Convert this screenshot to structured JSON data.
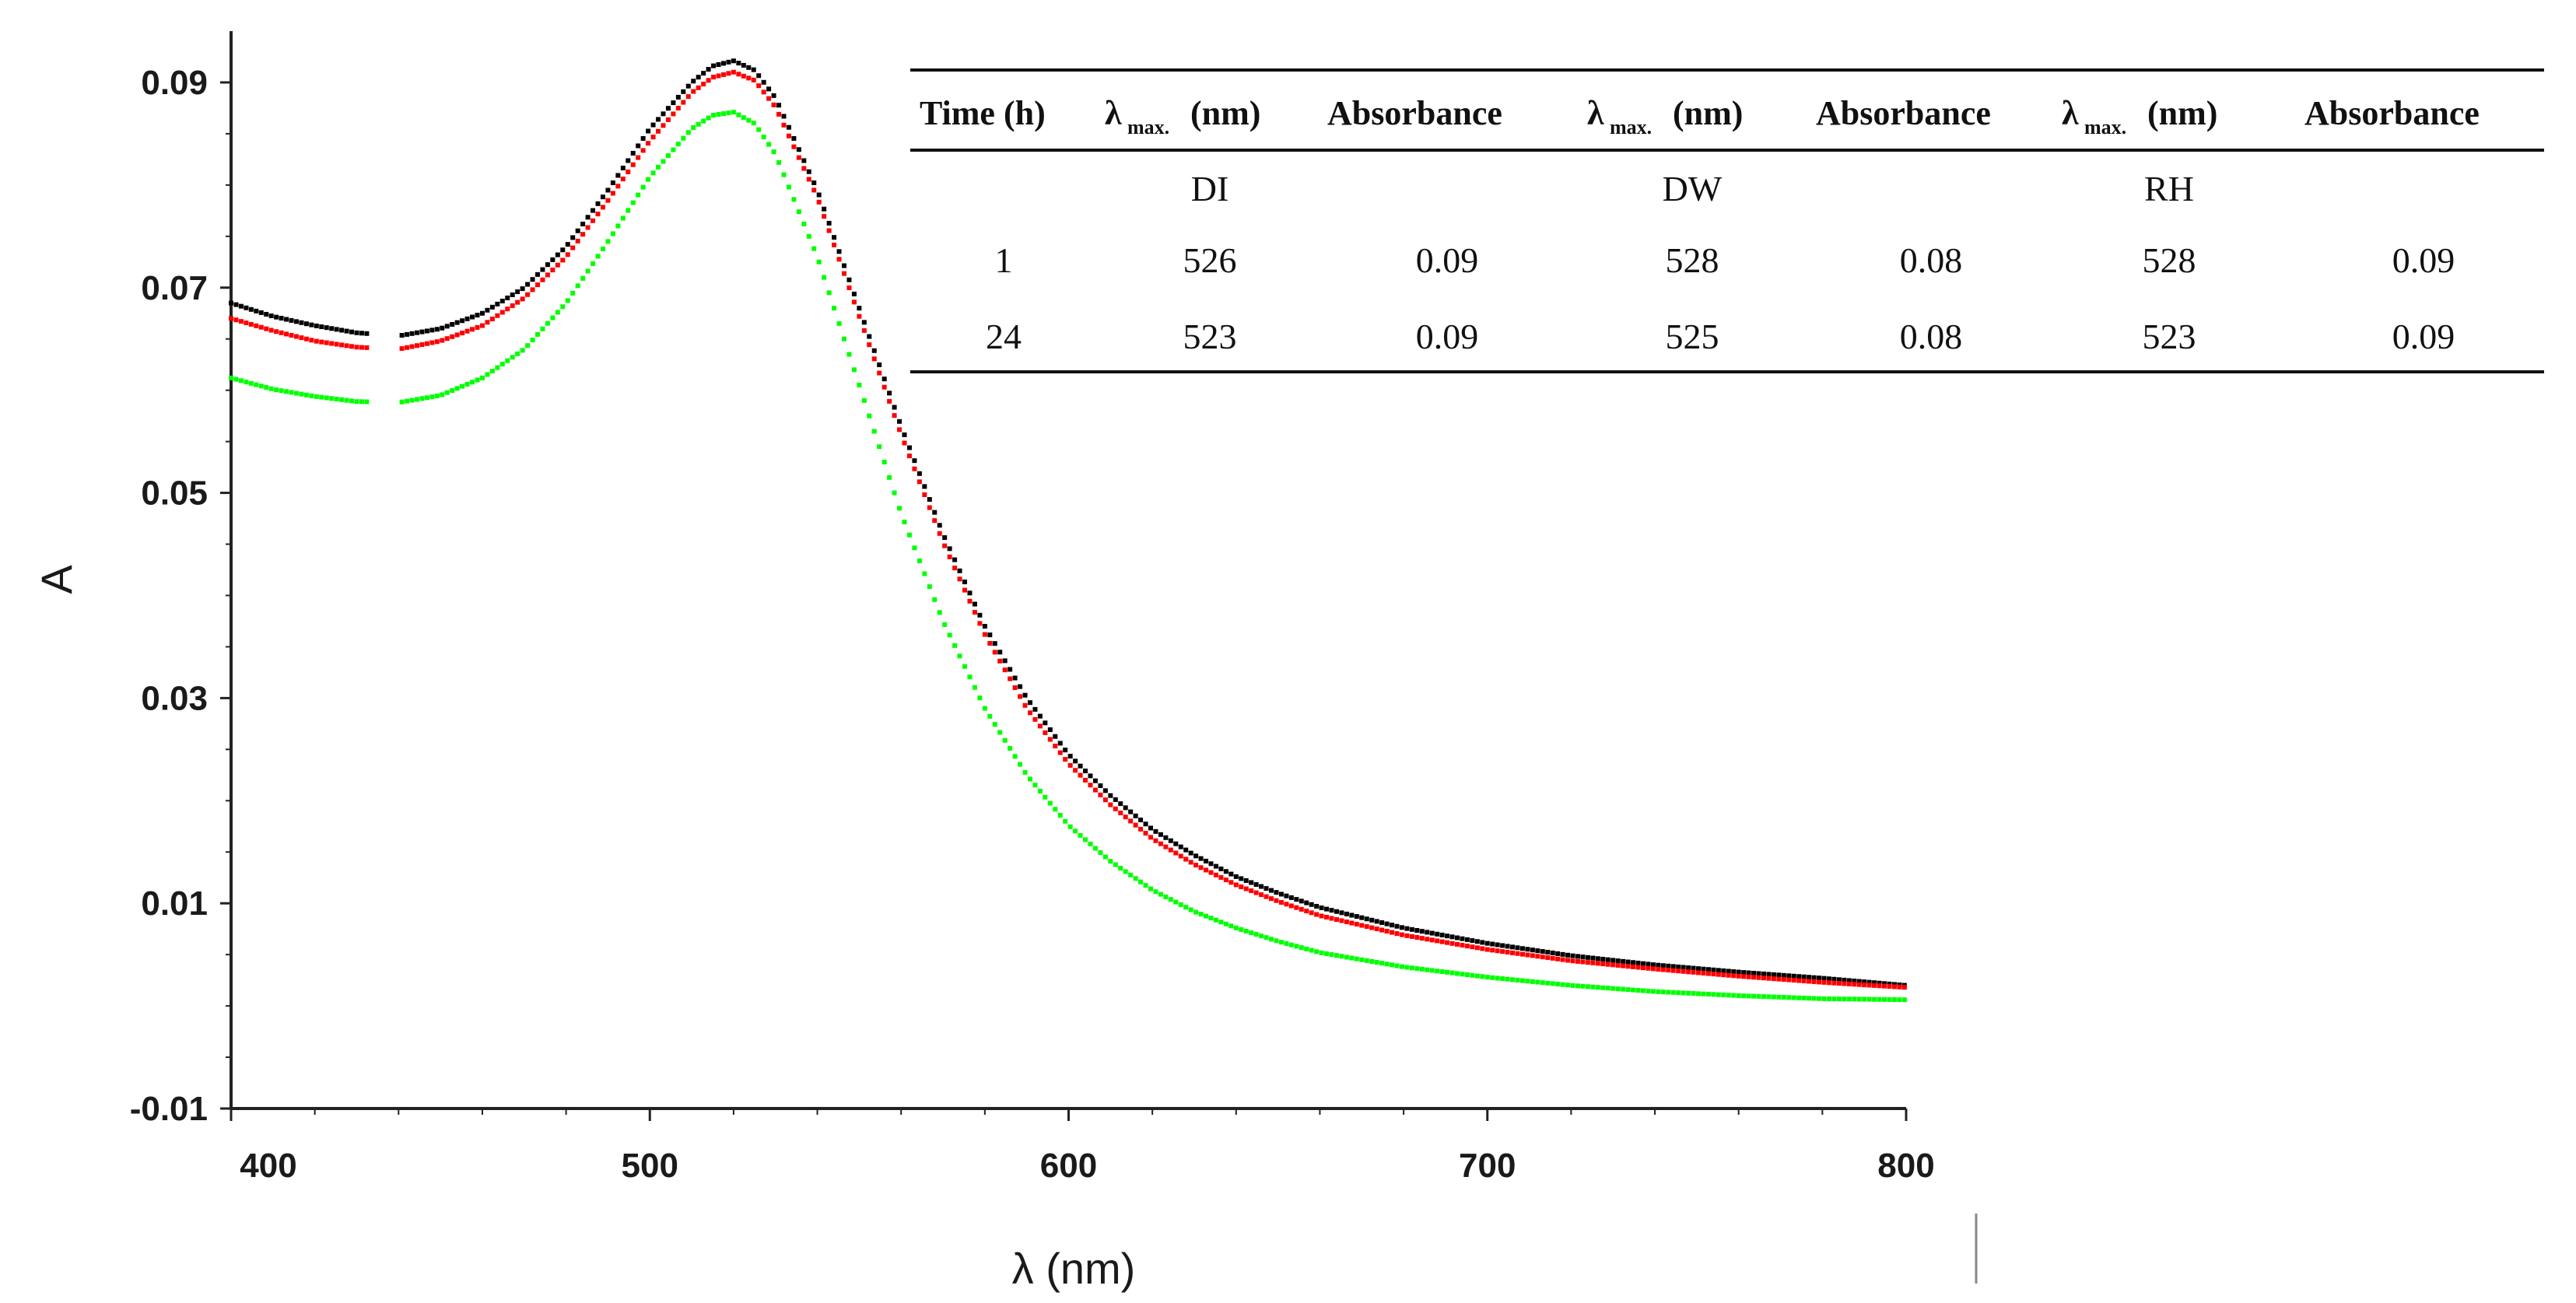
{
  "chart_data": {
    "type": "scatter",
    "title": "",
    "xlabel": "λ (nm)",
    "ylabel": "A",
    "xlim": [
      400,
      800
    ],
    "ylim": [
      -0.01,
      0.095
    ],
    "x_ticks": [
      400,
      500,
      600,
      700,
      800
    ],
    "x_tick_labels": [
      "400",
      "500",
      "600",
      "700",
      "800"
    ],
    "y_ticks": [
      -0.01,
      0.01,
      0.03,
      0.05,
      0.07,
      0.09
    ],
    "y_tick_labels": [
      "-0.01",
      "0.01",
      "0.03",
      "0.05",
      "0.07",
      "0.09"
    ],
    "series": [
      {
        "name": "black",
        "color": "#000000",
        "x": [
          400,
          410,
          420,
          430,
          440,
          450,
          460,
          470,
          480,
          490,
          500,
          510,
          515,
          520,
          525,
          530,
          540,
          550,
          560,
          570,
          580,
          590,
          600,
          610,
          620,
          630,
          640,
          650,
          660,
          680,
          700,
          720,
          740,
          760,
          780,
          800
        ],
        "values": [
          0.0685,
          0.0672,
          0.0663,
          0.0656,
          0.0653,
          0.066,
          0.0675,
          0.07,
          0.074,
          0.0795,
          0.0855,
          0.09,
          0.0916,
          0.0921,
          0.0912,
          0.0885,
          0.0795,
          0.068,
          0.0565,
          0.046,
          0.037,
          0.03,
          0.0245,
          0.0205,
          0.0172,
          0.0147,
          0.0126,
          0.011,
          0.0096,
          0.0076,
          0.0061,
          0.0049,
          0.004,
          0.0033,
          0.0027,
          0.002
        ]
      },
      {
        "name": "red",
        "color": "#ff0000",
        "x": [
          400,
          410,
          420,
          430,
          440,
          450,
          460,
          470,
          480,
          490,
          500,
          510,
          515,
          520,
          525,
          530,
          540,
          550,
          560,
          570,
          580,
          590,
          600,
          610,
          620,
          630,
          640,
          650,
          660,
          680,
          700,
          720,
          740,
          760,
          780,
          800
        ],
        "values": [
          0.067,
          0.0658,
          0.0648,
          0.0642,
          0.064,
          0.0648,
          0.0663,
          0.069,
          0.073,
          0.0785,
          0.0843,
          0.089,
          0.0905,
          0.091,
          0.0902,
          0.0876,
          0.0788,
          0.0672,
          0.0557,
          0.0452,
          0.0362,
          0.029,
          0.0236,
          0.0196,
          0.0163,
          0.0138,
          0.0118,
          0.0102,
          0.0088,
          0.0069,
          0.0055,
          0.0044,
          0.0036,
          0.0029,
          0.0023,
          0.0018
        ]
      },
      {
        "name": "green",
        "color": "#00ff00",
        "x": [
          400,
          410,
          420,
          430,
          440,
          450,
          460,
          470,
          480,
          490,
          500,
          510,
          515,
          520,
          525,
          530,
          540,
          550,
          560,
          570,
          580,
          590,
          600,
          610,
          620,
          630,
          640,
          650,
          660,
          680,
          700,
          720,
          740,
          760,
          780,
          800
        ],
        "values": [
          0.0612,
          0.0601,
          0.0594,
          0.0589,
          0.0588,
          0.0595,
          0.0612,
          0.064,
          0.0685,
          0.0745,
          0.0808,
          0.0855,
          0.0868,
          0.0871,
          0.086,
          0.083,
          0.073,
          0.0605,
          0.048,
          0.0375,
          0.029,
          0.0225,
          0.0176,
          0.0141,
          0.0113,
          0.0092,
          0.0076,
          0.0063,
          0.0052,
          0.0038,
          0.0028,
          0.002,
          0.0014,
          0.001,
          0.0007,
          0.0006
        ]
      }
    ],
    "inset_table": {
      "header": [
        "Time (h)",
        "λ",
        "(nm)",
        "Absorbance",
        "λ",
        "(nm)",
        "Absorbance",
        "λ",
        "(nm)",
        "Absorbance"
      ],
      "subscript": "max.",
      "groups": [
        "DI",
        "DW",
        "RH"
      ],
      "rows": [
        [
          "1",
          "526",
          "0.09",
          "528",
          "0.08",
          "528",
          "0.09"
        ],
        [
          "24",
          "523",
          "0.09",
          "525",
          "0.08",
          "523",
          "0.09"
        ]
      ]
    }
  }
}
